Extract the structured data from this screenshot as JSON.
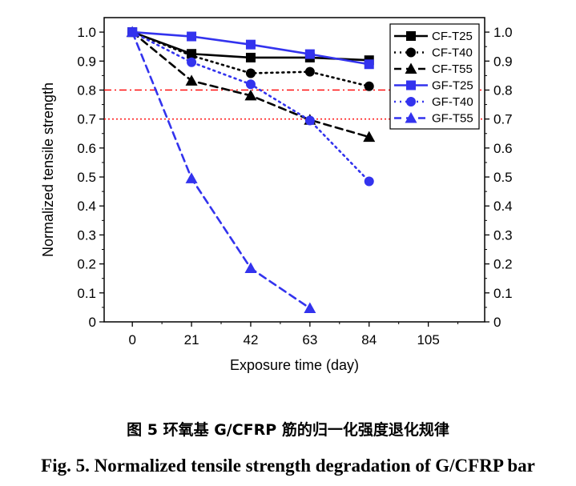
{
  "chart_data": {
    "type": "line",
    "xlabel": "Exposure time (day)",
    "ylabel": "Normalized tensile strength",
    "xlim": [
      -10,
      125
    ],
    "ylim": [
      0,
      1.05
    ],
    "x_ticks": [
      0,
      21,
      42,
      63,
      84,
      105
    ],
    "y_ticks": [
      0,
      0.1,
      0.2,
      0.3,
      0.4,
      0.5,
      0.6,
      0.7,
      0.8,
      0.9,
      1.0
    ],
    "x_tick_labels": [
      "0",
      "21",
      "42",
      "63",
      "84",
      "105"
    ],
    "y_tick_labels": [
      "0",
      "0.1",
      "0.2",
      "0.3",
      "0.4",
      "0.5",
      "0.6",
      "0.7",
      "0.8",
      "0.9",
      "1.0"
    ],
    "right_axis_mirrored": true,
    "legend_position": "top-right",
    "reference_lines": [
      {
        "y": 0.8,
        "color": "#ff0000",
        "style": "dash-dot"
      },
      {
        "y": 0.7,
        "color": "#ff0000",
        "style": "dotted"
      }
    ],
    "series": [
      {
        "name": "CF-T25",
        "color": "#000000",
        "dash": "solid",
        "marker": "square",
        "x": [
          0,
          21,
          42,
          63,
          84
        ],
        "y": [
          1.0,
          0.925,
          0.912,
          0.912,
          0.903
        ]
      },
      {
        "name": "CF-T40",
        "color": "#000000",
        "dash": "dotted",
        "marker": "circle",
        "x": [
          0,
          21,
          42,
          63,
          84
        ],
        "y": [
          1.0,
          0.919,
          0.858,
          0.863,
          0.813
        ]
      },
      {
        "name": "CF-T55",
        "color": "#000000",
        "dash": "dashed",
        "marker": "triangle",
        "x": [
          0,
          21,
          42,
          63,
          84
        ],
        "y": [
          1.0,
          0.832,
          0.781,
          0.697,
          0.638
        ]
      },
      {
        "name": "GF-T25",
        "color": "#3333ee",
        "dash": "solid",
        "marker": "square",
        "x": [
          0,
          21,
          42,
          63,
          84
        ],
        "y": [
          1.0,
          0.985,
          0.957,
          0.924,
          0.889
        ]
      },
      {
        "name": "GF-T40",
        "color": "#3333ee",
        "dash": "dotted",
        "marker": "circle",
        "x": [
          0,
          21,
          42,
          63,
          84
        ],
        "y": [
          1.0,
          0.896,
          0.82,
          0.695,
          0.485
        ]
      },
      {
        "name": "GF-T55",
        "color": "#3333ee",
        "dash": "dashed",
        "marker": "triangle",
        "x": [
          0,
          21,
          42,
          63
        ],
        "y": [
          1.0,
          0.495,
          0.185,
          0.047
        ]
      }
    ]
  },
  "caption": {
    "chinese": "图 5 环氧基 G/CFRP 筋的归一化强度退化规律",
    "english": "Fig. 5. Normalized tensile strength degradation of G/CFRP bar"
  }
}
